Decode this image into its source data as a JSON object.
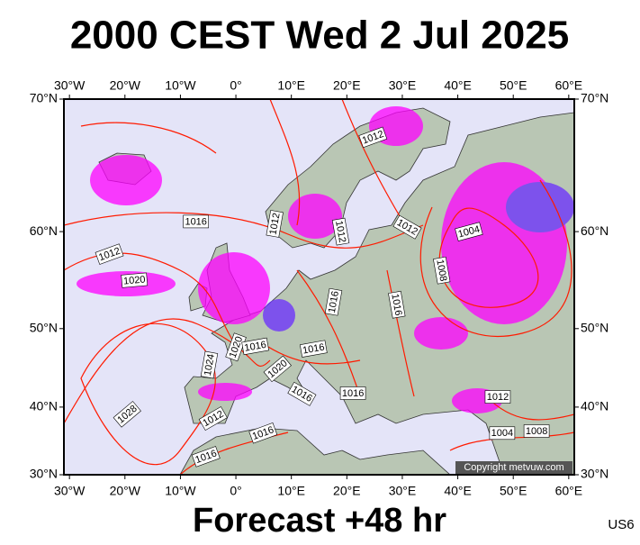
{
  "title": "2000 CEST Wed 2 Jul 2025",
  "footer": "Forecast +48 hr",
  "code": "US6",
  "copyright": "Copyright metvuw.com",
  "map": {
    "lonlim": [
      -31,
      61
    ],
    "latlim": [
      30,
      70
    ],
    "lon_ticks": [
      {
        "value": -30,
        "label": "30°W"
      },
      {
        "value": -20,
        "label": "20°W"
      },
      {
        "value": -10,
        "label": "10°W"
      },
      {
        "value": 0,
        "label": "0°"
      },
      {
        "value": 10,
        "label": "10°E"
      },
      {
        "value": 20,
        "label": "20°E"
      },
      {
        "value": 30,
        "label": "30°E"
      },
      {
        "value": 40,
        "label": "40°E"
      },
      {
        "value": 50,
        "label": "50°E"
      },
      {
        "value": 60,
        "label": "60°E"
      }
    ],
    "lat_ticks": [
      {
        "value": 30,
        "label": "30°N"
      },
      {
        "value": 40,
        "label": "40°N"
      },
      {
        "value": 50,
        "label": "50°N"
      },
      {
        "value": 60,
        "label": "60°N"
      },
      {
        "value": 70,
        "label": "70°N"
      }
    ],
    "isobar_labels": [
      {
        "text": "1012",
        "lon": 24.7,
        "lat": 67.5
      },
      {
        "text": "1016",
        "lon": -7.2,
        "lat": 60.9
      },
      {
        "text": "1012",
        "lon": 7.0,
        "lat": 60.7
      },
      {
        "text": "1012",
        "lon": 18.9,
        "lat": 60.0
      },
      {
        "text": "1012",
        "lon": 30.9,
        "lat": 60.4
      },
      {
        "text": "1004",
        "lon": 42.0,
        "lat": 60.0
      },
      {
        "text": "1008",
        "lon": 37.1,
        "lat": 56.3
      },
      {
        "text": "1012",
        "lon": -22.8,
        "lat": 57.9
      },
      {
        "text": "1020",
        "lon": -18.3,
        "lat": 55.3
      },
      {
        "text": "1016",
        "lon": 17.6,
        "lat": 53.0
      },
      {
        "text": "1016",
        "lon": 29.0,
        "lat": 52.7
      },
      {
        "text": "1020",
        "lon": 0.0,
        "lat": 47.8
      },
      {
        "text": "1016",
        "lon": 3.5,
        "lat": 47.9
      },
      {
        "text": "1016",
        "lon": 14.0,
        "lat": 47.6
      },
      {
        "text": "1024",
        "lon": -4.8,
        "lat": 45.6
      },
      {
        "text": "1020",
        "lon": 7.5,
        "lat": 45.1
      },
      {
        "text": "1016",
        "lon": 11.9,
        "lat": 41.8
      },
      {
        "text": "1016",
        "lon": 21.1,
        "lat": 41.9
      },
      {
        "text": "1028",
        "lon": -19.6,
        "lat": 39.0
      },
      {
        "text": "1012",
        "lon": -4.1,
        "lat": 38.4
      },
      {
        "text": "1012",
        "lon": 47.2,
        "lat": 41.4
      },
      {
        "text": "1016",
        "lon": 4.9,
        "lat": 36.3
      },
      {
        "text": "1004",
        "lon": 48.0,
        "lat": 36.3
      },
      {
        "text": "1008",
        "lon": 54.2,
        "lat": 36.6
      },
      {
        "text": "1016",
        "lon": -5.4,
        "lat": 32.8
      }
    ]
  }
}
